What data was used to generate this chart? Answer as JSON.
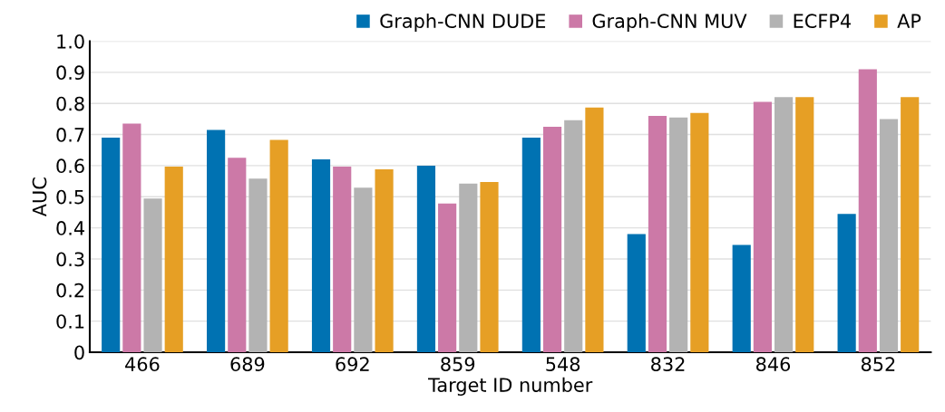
{
  "chart_data": {
    "type": "bar",
    "xlabel": "Target ID number",
    "ylabel": "AUC",
    "categories": [
      "466",
      "689",
      "692",
      "859",
      "548",
      "832",
      "846",
      "852"
    ],
    "series": [
      {
        "name": "Graph-CNN DUDE",
        "color": "#0072b2",
        "values": [
          0.69,
          0.715,
          0.62,
          0.6,
          0.69,
          0.38,
          0.345,
          0.445
        ]
      },
      {
        "name": "Graph-CNN MUV",
        "color": "#cc79a7",
        "values": [
          0.735,
          0.625,
          0.597,
          0.478,
          0.725,
          0.76,
          0.805,
          0.91
        ]
      },
      {
        "name": "ECFP4",
        "color": "#b3b3b3",
        "values": [
          0.494,
          0.558,
          0.529,
          0.542,
          0.746,
          0.755,
          0.82,
          0.75
        ]
      },
      {
        "name": "AP",
        "color": "#e69f25",
        "values": [
          0.597,
          0.683,
          0.588,
          0.547,
          0.787,
          0.769,
          0.82,
          0.82
        ]
      }
    ],
    "ylim": [
      0,
      1.0
    ],
    "yticks": [
      0,
      0.1,
      0.2,
      0.3,
      0.4,
      0.5,
      0.6,
      0.7,
      0.8,
      0.9,
      {
        "value": 1,
        "label": "1.0"
      }
    ],
    "grid": "y",
    "legend": "top right"
  }
}
